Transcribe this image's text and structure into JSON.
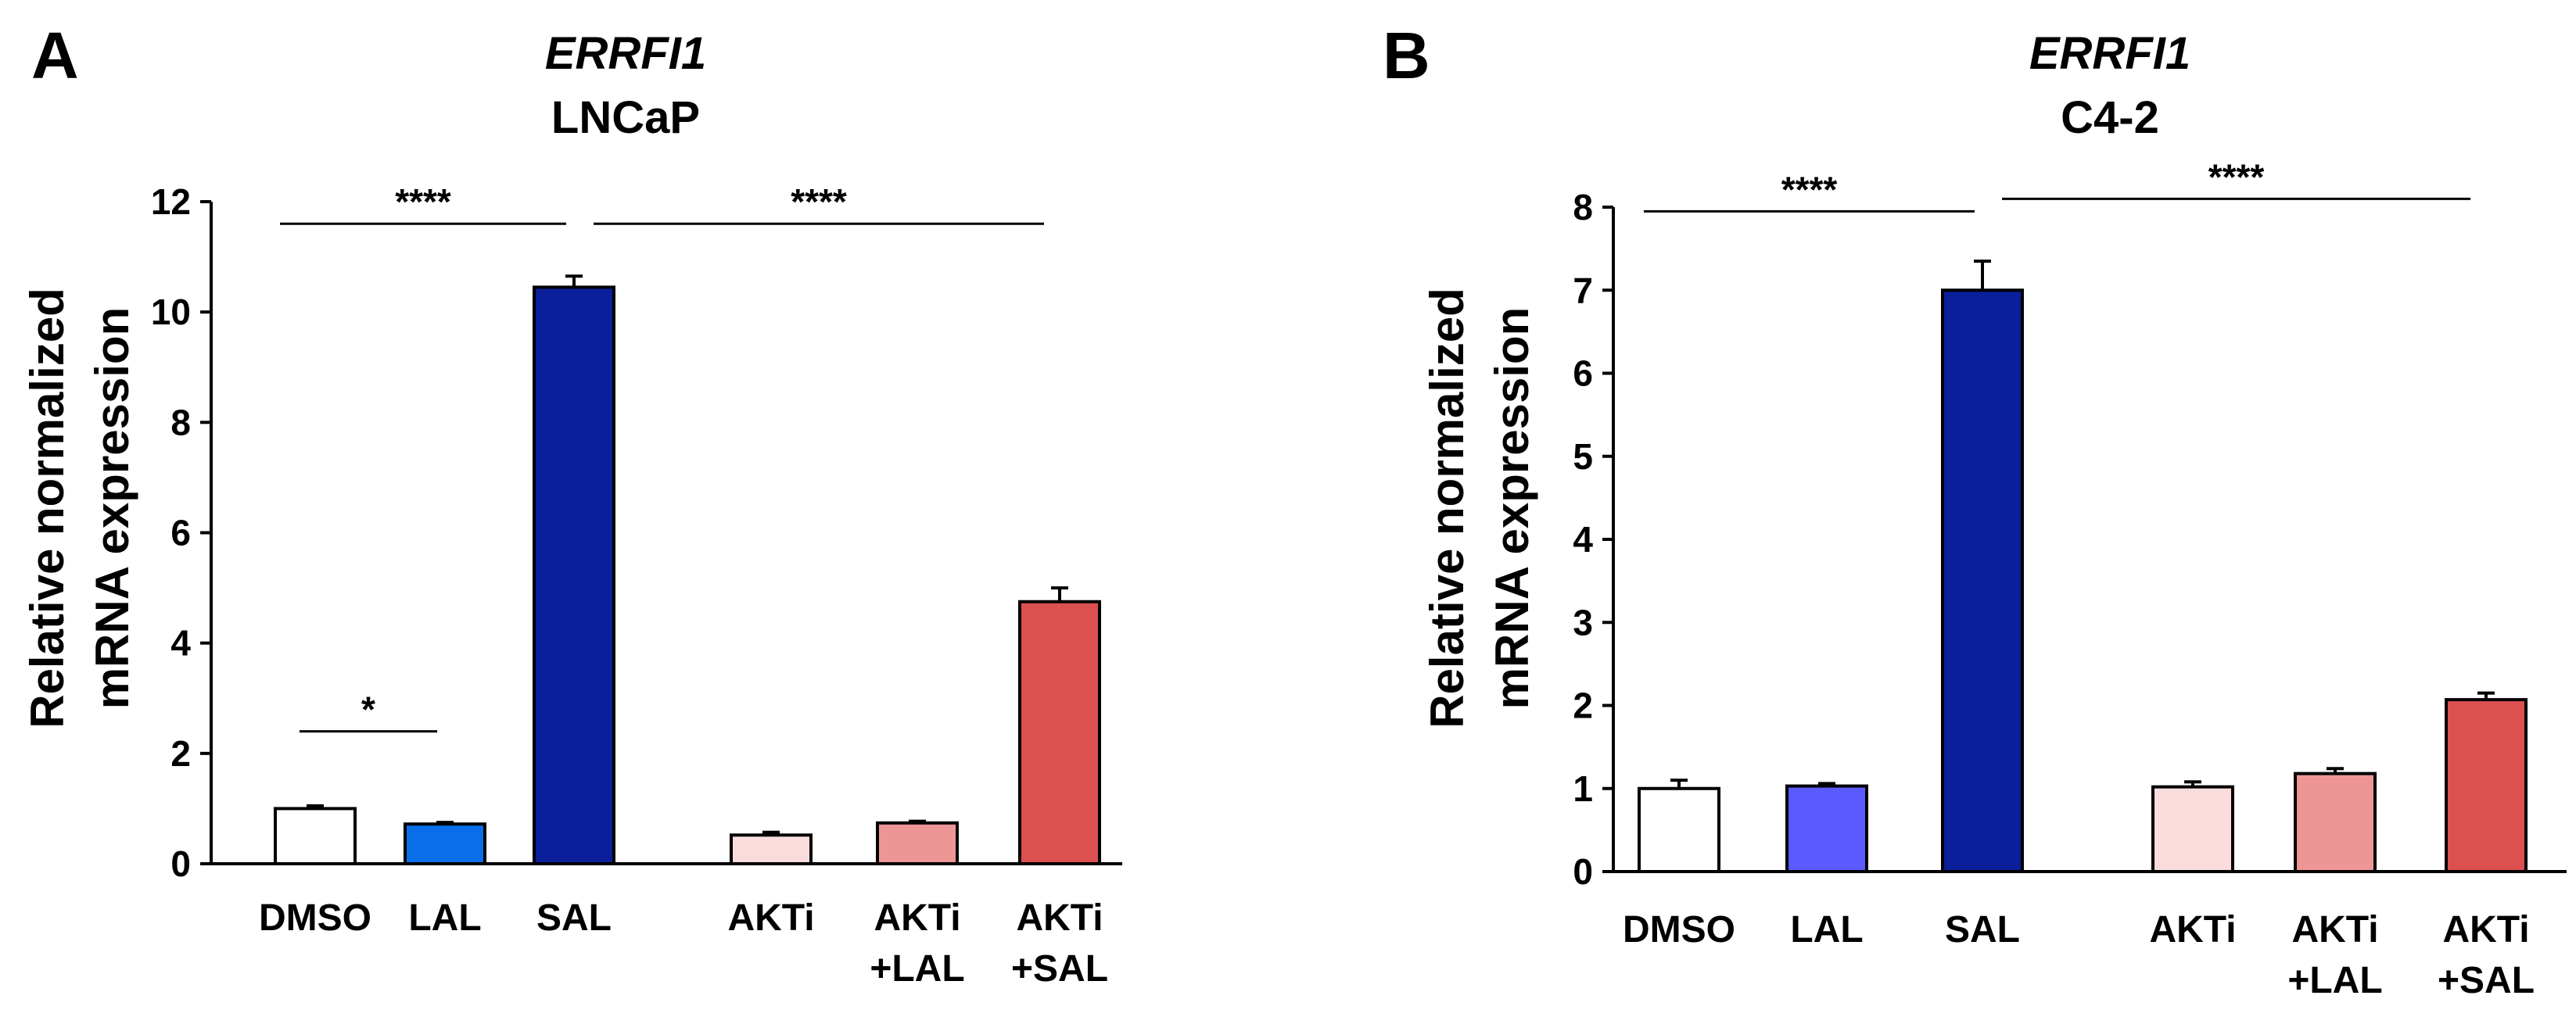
{
  "chart_data": [
    {
      "panel": "A",
      "type": "bar",
      "title_gene": "ERRFI1",
      "title_cell": "LNCaP",
      "ylabel_line1": "Relative normalized",
      "ylabel_line2": "mRNA expression",
      "ylim": [
        0,
        12
      ],
      "yticks": [
        0,
        2,
        4,
        6,
        8,
        10,
        12
      ],
      "categories": [
        {
          "line1": "DMSO",
          "line2": ""
        },
        {
          "line1": "LAL",
          "line2": ""
        },
        {
          "line1": "SAL",
          "line2": ""
        },
        {
          "line1": "AKTi",
          "line2": ""
        },
        {
          "line1": "AKTi",
          "line2": "+LAL"
        },
        {
          "line1": "AKTi",
          "line2": "+SAL"
        }
      ],
      "values": [
        1.0,
        0.72,
        10.45,
        0.52,
        0.74,
        4.75
      ],
      "errors": [
        0.05,
        0.03,
        0.2,
        0.05,
        0.03,
        0.25
      ],
      "colors": [
        "#ffffff",
        "#0a6ee8",
        "#0a1f99",
        "#fadcdc",
        "#ee9696",
        "#dc5050"
      ],
      "significance": [
        {
          "label": "*",
          "from": 0,
          "to": 1,
          "y": 2.4
        },
        {
          "label": "****",
          "from": 0,
          "to": 2,
          "y": 11.6
        },
        {
          "label": "****",
          "from": 2,
          "to": 5,
          "y": 11.6
        }
      ]
    },
    {
      "panel": "B",
      "type": "bar",
      "title_gene": "ERRFI1",
      "title_cell": "C4-2",
      "ylabel_line1": "Relative normalized",
      "ylabel_line2": "mRNA expression",
      "ylim": [
        0,
        8
      ],
      "yticks": [
        0,
        1,
        2,
        3,
        4,
        5,
        6,
        7,
        8
      ],
      "categories": [
        {
          "line1": "DMSO",
          "line2": ""
        },
        {
          "line1": "LAL",
          "line2": ""
        },
        {
          "line1": "SAL",
          "line2": ""
        },
        {
          "line1": "AKTi",
          "line2": ""
        },
        {
          "line1": "AKTi",
          "line2": "+LAL"
        },
        {
          "line1": "AKTi",
          "line2": "+SAL"
        }
      ],
      "values": [
        1.0,
        1.03,
        7.0,
        1.02,
        1.18,
        2.07
      ],
      "errors": [
        0.1,
        0.03,
        0.35,
        0.06,
        0.06,
        0.08
      ],
      "colors": [
        "#ffffff",
        "#5a5aff",
        "#0a1f99",
        "#fadcdc",
        "#ee9696",
        "#dc5050"
      ],
      "significance": [
        {
          "label": "****",
          "from": 0,
          "to": 2,
          "y": 7.95
        },
        {
          "label": "****",
          "from": 2,
          "to": 5,
          "y": 8.1
        }
      ]
    }
  ]
}
